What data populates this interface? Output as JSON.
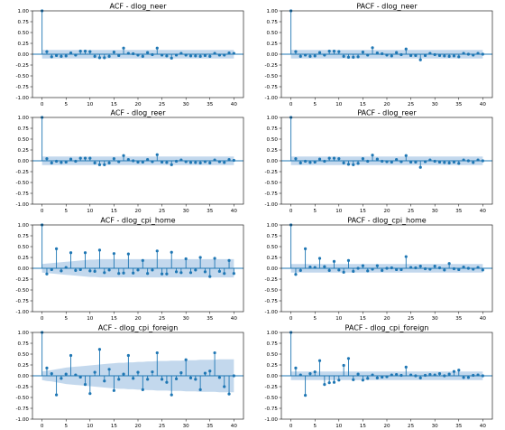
{
  "colors": {
    "stem": "#1f77b4",
    "marker": "#1f77b4",
    "band": "#a9c8e6",
    "axis": "#000000",
    "background": "#ffffff"
  },
  "chart_data": [
    {
      "type": "stem",
      "title": "ACF - dlog_neer",
      "xlim": [
        -2,
        42
      ],
      "ylim": [
        -1.0,
        1.0
      ],
      "xticks": [
        0,
        5,
        10,
        15,
        20,
        25,
        30,
        35,
        40
      ],
      "yticks": [
        -1.0,
        -0.75,
        -0.5,
        -0.25,
        0.0,
        0.25,
        0.5,
        0.75,
        1.0
      ],
      "ytick_labels": [
        "-1.00",
        "-0.75",
        "-0.50",
        "-0.25",
        "0.00",
        "0.25",
        "0.50",
        "0.75",
        "1.00"
      ],
      "lags": [
        0,
        1,
        2,
        3,
        4,
        5,
        6,
        7,
        8,
        9,
        10,
        11,
        12,
        13,
        14,
        15,
        16,
        17,
        18,
        19,
        20,
        21,
        22,
        23,
        24,
        25,
        26,
        27,
        28,
        29,
        30,
        31,
        32,
        33,
        34,
        35,
        36,
        37,
        38,
        39,
        40
      ],
      "values": [
        1.0,
        0.06,
        -0.06,
        -0.03,
        -0.05,
        -0.04,
        0.03,
        -0.02,
        0.07,
        0.07,
        0.06,
        -0.05,
        -0.08,
        -0.08,
        -0.05,
        0.05,
        -0.03,
        0.14,
        0.02,
        0.01,
        -0.02,
        -0.05,
        0.04,
        -0.01,
        0.14,
        -0.02,
        -0.04,
        -0.09,
        -0.02,
        0.02,
        -0.02,
        -0.04,
        -0.04,
        -0.05,
        -0.03,
        -0.05,
        0.02,
        -0.02,
        -0.02,
        0.03,
        0.02
      ],
      "confidence_band": 0.1
    },
    {
      "type": "stem",
      "title": "PACF - dlog_neer",
      "xlim": [
        -2,
        42
      ],
      "ylim": [
        -1.0,
        1.0
      ],
      "xticks": [
        0,
        5,
        10,
        15,
        20,
        25,
        30,
        35,
        40
      ],
      "yticks": [
        -1.0,
        -0.75,
        -0.5,
        -0.25,
        0.0,
        0.25,
        0.5,
        0.75,
        1.0
      ],
      "ytick_labels": [
        "-1.00",
        "-0.75",
        "-0.50",
        "-0.25",
        "0.00",
        "0.25",
        "0.50",
        "0.75",
        "1.00"
      ],
      "lags": [
        0,
        1,
        2,
        3,
        4,
        5,
        6,
        7,
        8,
        9,
        10,
        11,
        12,
        13,
        14,
        15,
        16,
        17,
        18,
        19,
        20,
        21,
        22,
        23,
        24,
        25,
        26,
        27,
        28,
        29,
        30,
        31,
        32,
        33,
        34,
        35,
        36,
        37,
        38,
        39,
        40
      ],
      "values": [
        1.0,
        0.06,
        -0.05,
        -0.02,
        -0.05,
        -0.04,
        0.04,
        -0.02,
        0.07,
        0.07,
        0.06,
        -0.05,
        -0.07,
        -0.07,
        -0.06,
        0.05,
        -0.02,
        0.15,
        0.03,
        0.01,
        -0.02,
        -0.04,
        0.04,
        -0.01,
        0.12,
        -0.03,
        -0.03,
        -0.13,
        -0.03,
        0.02,
        -0.01,
        -0.03,
        -0.04,
        -0.05,
        -0.04,
        -0.06,
        0.02,
        0.0,
        -0.02,
        0.02,
        0.0
      ],
      "confidence_band": 0.1
    },
    {
      "type": "stem",
      "title": "ACF - dlog_reer",
      "xlim": [
        -2,
        42
      ],
      "ylim": [
        -1.0,
        1.0
      ],
      "xticks": [
        0,
        5,
        10,
        15,
        20,
        25,
        30,
        35,
        40
      ],
      "yticks": [
        -1.0,
        -0.75,
        -0.5,
        -0.25,
        0.0,
        0.25,
        0.5,
        0.75,
        1.0
      ],
      "ytick_labels": [
        "-1.00",
        "-0.75",
        "-0.50",
        "-0.25",
        "0.00",
        "0.25",
        "0.50",
        "0.75",
        "1.00"
      ],
      "lags": [
        0,
        1,
        2,
        3,
        4,
        5,
        6,
        7,
        8,
        9,
        10,
        11,
        12,
        13,
        14,
        15,
        16,
        17,
        18,
        19,
        20,
        21,
        22,
        23,
        24,
        25,
        26,
        27,
        28,
        29,
        30,
        31,
        32,
        33,
        34,
        35,
        36,
        37,
        38,
        39,
        40
      ],
      "values": [
        1.0,
        0.05,
        -0.05,
        -0.01,
        -0.04,
        -0.03,
        0.04,
        -0.01,
        0.06,
        0.06,
        0.06,
        -0.05,
        -0.09,
        -0.09,
        -0.05,
        0.05,
        -0.02,
        0.12,
        0.03,
        0.0,
        -0.03,
        -0.03,
        0.03,
        -0.02,
        0.14,
        -0.03,
        -0.04,
        -0.09,
        -0.01,
        0.02,
        -0.02,
        -0.04,
        -0.04,
        -0.05,
        -0.02,
        -0.05,
        0.02,
        -0.02,
        -0.04,
        0.03,
        0.01
      ],
      "confidence_band": 0.1
    },
    {
      "type": "stem",
      "title": "PACF - dlog_reer",
      "xlim": [
        -2,
        42
      ],
      "ylim": [
        -1.0,
        1.0
      ],
      "xticks": [
        0,
        5,
        10,
        15,
        20,
        25,
        30,
        35,
        40
      ],
      "yticks": [
        -1.0,
        -0.75,
        -0.5,
        -0.25,
        0.0,
        0.25,
        0.5,
        0.75,
        1.0
      ],
      "ytick_labels": [
        "-1.00",
        "-0.75",
        "-0.50",
        "-0.25",
        "0.00",
        "0.25",
        "0.50",
        "0.75",
        "1.00"
      ],
      "lags": [
        0,
        1,
        2,
        3,
        4,
        5,
        6,
        7,
        8,
        9,
        10,
        11,
        12,
        13,
        14,
        15,
        16,
        17,
        18,
        19,
        20,
        21,
        22,
        23,
        24,
        25,
        26,
        27,
        28,
        29,
        30,
        31,
        32,
        33,
        34,
        35,
        36,
        37,
        38,
        39,
        40
      ],
      "values": [
        1.0,
        0.05,
        -0.05,
        -0.01,
        -0.04,
        -0.03,
        0.04,
        -0.01,
        0.06,
        0.06,
        0.05,
        -0.05,
        -0.08,
        -0.09,
        -0.06,
        0.05,
        -0.01,
        0.13,
        0.04,
        -0.01,
        -0.02,
        -0.03,
        0.03,
        -0.02,
        0.12,
        -0.03,
        -0.03,
        -0.15,
        -0.02,
        0.02,
        -0.01,
        -0.03,
        -0.04,
        -0.05,
        -0.03,
        -0.06,
        0.02,
        0.0,
        -0.04,
        0.02,
        0.0
      ],
      "confidence_band": 0.1
    },
    {
      "type": "stem",
      "title": "ACF - dlog_cpi_home",
      "xlim": [
        -2,
        42
      ],
      "ylim": [
        -1.0,
        1.0
      ],
      "xticks": [
        0,
        5,
        10,
        15,
        20,
        25,
        30,
        35,
        40
      ],
      "yticks": [
        -1.0,
        -0.75,
        -0.5,
        -0.25,
        0.0,
        0.25,
        0.5,
        0.75,
        1.0
      ],
      "ytick_labels": [
        "-1.00",
        "-0.75",
        "-0.50",
        "-0.25",
        "0.00",
        "0.25",
        "0.50",
        "0.75",
        "1.00"
      ],
      "lags": [
        0,
        1,
        2,
        3,
        4,
        5,
        6,
        7,
        8,
        9,
        10,
        11,
        12,
        13,
        14,
        15,
        16,
        17,
        18,
        19,
        20,
        21,
        22,
        23,
        24,
        25,
        26,
        27,
        28,
        29,
        30,
        31,
        32,
        33,
        34,
        35,
        36,
        37,
        38,
        39,
        40
      ],
      "values": [
        1.0,
        -0.13,
        -0.03,
        0.45,
        -0.06,
        0.02,
        0.36,
        -0.05,
        -0.03,
        0.36,
        -0.06,
        -0.07,
        0.42,
        -0.1,
        -0.04,
        0.34,
        -0.12,
        -0.11,
        0.33,
        -0.11,
        -0.04,
        0.18,
        -0.12,
        -0.04,
        0.4,
        -0.13,
        -0.13,
        0.37,
        -0.08,
        -0.1,
        0.22,
        -0.1,
        -0.04,
        0.25,
        -0.08,
        -0.19,
        0.23,
        -0.07,
        -0.12,
        0.18,
        -0.12
      ],
      "confidence_band": [
        0.1,
        0.11,
        0.12,
        0.13,
        0.14,
        0.15,
        0.16,
        0.17,
        0.18,
        0.19,
        0.2,
        0.2,
        0.21,
        0.21,
        0.21,
        0.21,
        0.21,
        0.21,
        0.21,
        0.21,
        0.21,
        0.21,
        0.21,
        0.21,
        0.21,
        0.21,
        0.21,
        0.21,
        0.21,
        0.21,
        0.21,
        0.21,
        0.21,
        0.21,
        0.21,
        0.21,
        0.21,
        0.21,
        0.21,
        0.21,
        0.21
      ]
    },
    {
      "type": "stem",
      "title": "PACF - dlog_cpi_home",
      "xlim": [
        -2,
        42
      ],
      "ylim": [
        -1.0,
        1.0
      ],
      "xticks": [
        0,
        5,
        10,
        15,
        20,
        25,
        30,
        35,
        40
      ],
      "yticks": [
        -1.0,
        -0.75,
        -0.5,
        -0.25,
        0.0,
        0.25,
        0.5,
        0.75,
        1.0
      ],
      "ytick_labels": [
        "-1.00",
        "-0.75",
        "-0.50",
        "-0.25",
        "0.00",
        "0.25",
        "0.50",
        "0.75",
        "1.00"
      ],
      "lags": [
        0,
        1,
        2,
        3,
        4,
        5,
        6,
        7,
        8,
        9,
        10,
        11,
        12,
        13,
        14,
        15,
        16,
        17,
        18,
        19,
        20,
        21,
        22,
        23,
        24,
        25,
        26,
        27,
        28,
        29,
        30,
        31,
        32,
        33,
        34,
        35,
        36,
        37,
        38,
        39,
        40
      ],
      "values": [
        1.0,
        -0.14,
        -0.05,
        0.45,
        0.03,
        0.02,
        0.23,
        0.04,
        -0.05,
        0.16,
        -0.04,
        -0.09,
        0.18,
        -0.07,
        0.0,
        0.06,
        -0.06,
        -0.02,
        0.06,
        -0.05,
        0.0,
        0.01,
        -0.03,
        -0.03,
        0.27,
        0.02,
        0.01,
        0.05,
        -0.01,
        -0.02,
        0.05,
        0.01,
        -0.04,
        0.11,
        -0.01,
        -0.03,
        0.03,
        0.0,
        -0.02,
        0.02,
        -0.04
      ],
      "confidence_band": 0.1
    },
    {
      "type": "stem",
      "title": "ACF - dlog_cpi_foreign",
      "xlim": [
        -2,
        42
      ],
      "ylim": [
        -1.0,
        1.0
      ],
      "xticks": [
        0,
        5,
        10,
        15,
        20,
        25,
        30,
        35,
        40
      ],
      "yticks": [
        -1.0,
        -0.75,
        -0.5,
        -0.25,
        0.0,
        0.25,
        0.5,
        0.75,
        1.0
      ],
      "ytick_labels": [
        "-1.00",
        "-0.75",
        "-0.50",
        "-0.25",
        "0.00",
        "0.25",
        "0.50",
        "0.75",
        "1.00"
      ],
      "lags": [
        0,
        1,
        2,
        3,
        4,
        5,
        6,
        7,
        8,
        9,
        10,
        11,
        12,
        13,
        14,
        15,
        16,
        17,
        18,
        19,
        20,
        21,
        22,
        23,
        24,
        25,
        26,
        27,
        28,
        29,
        30,
        31,
        32,
        33,
        34,
        35,
        36,
        37,
        38,
        39,
        40
      ],
      "values": [
        1.0,
        0.18,
        0.05,
        -0.44,
        -0.06,
        0.04,
        0.47,
        0.02,
        -0.03,
        -0.2,
        -0.41,
        0.08,
        0.61,
        -0.12,
        0.15,
        -0.34,
        -0.08,
        0.04,
        0.47,
        -0.06,
        0.08,
        -0.32,
        -0.08,
        0.09,
        0.53,
        -0.08,
        -0.15,
        -0.44,
        -0.07,
        0.07,
        0.37,
        -0.05,
        -0.08,
        -0.32,
        0.06,
        0.11,
        0.53,
        -0.04,
        -0.25,
        -0.42,
        0.0
      ],
      "confidence_band": [
        0.1,
        0.12,
        0.13,
        0.15,
        0.17,
        0.19,
        0.2,
        0.21,
        0.22,
        0.23,
        0.24,
        0.25,
        0.26,
        0.27,
        0.28,
        0.29,
        0.3,
        0.3,
        0.31,
        0.31,
        0.32,
        0.32,
        0.33,
        0.33,
        0.34,
        0.34,
        0.34,
        0.35,
        0.35,
        0.35,
        0.36,
        0.36,
        0.36,
        0.37,
        0.37,
        0.37,
        0.37,
        0.38,
        0.38,
        0.38,
        0.38
      ]
    },
    {
      "type": "stem",
      "title": "PACF - dlog_cpi_foreign",
      "xlim": [
        -2,
        42
      ],
      "ylim": [
        -1.0,
        1.0
      ],
      "xticks": [
        0,
        5,
        10,
        15,
        20,
        25,
        30,
        35,
        40
      ],
      "yticks": [
        -1.0,
        -0.75,
        -0.5,
        -0.25,
        0.0,
        0.25,
        0.5,
        0.75,
        1.0
      ],
      "ytick_labels": [
        "-1.00",
        "-0.75",
        "-0.50",
        "-0.25",
        "0.00",
        "0.25",
        "0.50",
        "0.75",
        "1.00"
      ],
      "lags": [
        0,
        1,
        2,
        3,
        4,
        5,
        6,
        7,
        8,
        9,
        10,
        11,
        12,
        13,
        14,
        15,
        16,
        17,
        18,
        19,
        20,
        21,
        22,
        23,
        24,
        25,
        26,
        27,
        28,
        29,
        30,
        31,
        32,
        33,
        34,
        35,
        36,
        37,
        38,
        39,
        40
      ],
      "values": [
        1.0,
        0.18,
        0.02,
        -0.45,
        0.05,
        0.09,
        0.35,
        -0.2,
        -0.16,
        -0.15,
        -0.1,
        0.24,
        0.4,
        -0.09,
        0.04,
        -0.1,
        -0.06,
        0.02,
        -0.05,
        -0.03,
        -0.02,
        0.02,
        0.03,
        0.01,
        0.2,
        0.02,
        0.0,
        -0.05,
        0.01,
        0.03,
        0.02,
        0.05,
        0.0,
        0.04,
        0.1,
        0.13,
        -0.04,
        -0.04,
        0.01,
        0.02,
        0.0
      ],
      "confidence_band": 0.1
    }
  ]
}
